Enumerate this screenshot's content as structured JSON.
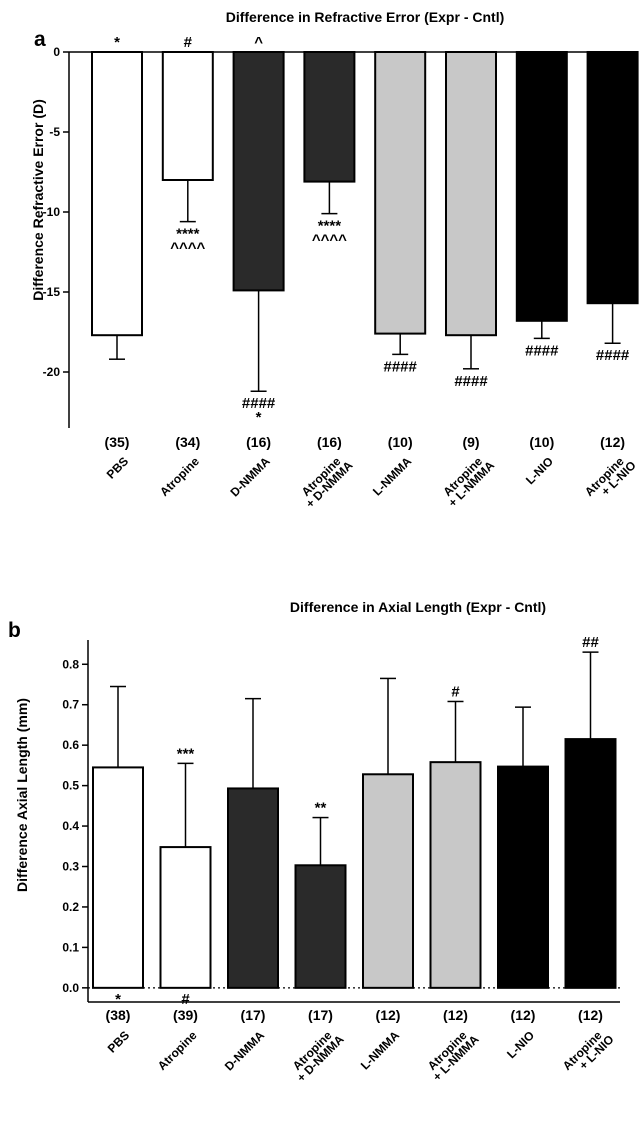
{
  "chart_data": [
    {
      "type": "bar",
      "panel_label": "a",
      "title": "Difference in Refractive Error (Expr -  Cntl)",
      "ylabel": "Difference Refractive  Error  (D)",
      "ylim": [
        -23.5,
        0
      ],
      "yticks": [
        "0",
        "-5",
        "-10",
        "-15",
        "-20"
      ],
      "ytick_values": [
        0,
        -5,
        -10,
        -15,
        -20
      ],
      "categories": [
        [
          "PBS"
        ],
        [
          "Atropine"
        ],
        [
          "D-NMMA"
        ],
        [
          "Atropine",
          "+ D-NMMA"
        ],
        [
          "L-NMMA"
        ],
        [
          "Atropine",
          "+ L-NMMA"
        ],
        [
          "L-NIO"
        ],
        [
          "Atropine",
          "+ L-NIO"
        ]
      ],
      "n_labels": [
        "(35)",
        "(34)",
        "(16)",
        "(16)",
        "(10)",
        "(9)",
        "(10)",
        "(12)"
      ],
      "values": [
        -17.7,
        -8.0,
        -14.9,
        -8.1,
        -17.6,
        -17.7,
        -16.8,
        -15.7
      ],
      "errors": [
        1.5,
        2.6,
        6.3,
        2.0,
        1.3,
        2.1,
        1.1,
        2.5
      ],
      "colors": [
        "#ffffff",
        "#ffffff",
        "#2a2a2a",
        "#2a2a2a",
        "#c8c8c8",
        "#c8c8c8",
        "#000000",
        "#000000"
      ],
      "top_annotations": [
        "*",
        "#",
        "^",
        "",
        "",
        "",
        "",
        ""
      ],
      "bottom_annotations": [
        [],
        [
          "****",
          "^^^^"
        ],
        [
          "####",
          "*"
        ],
        [
          "****",
          "^^^^"
        ],
        [
          "####"
        ],
        [
          "####"
        ],
        [
          "####"
        ],
        [
          "####"
        ]
      ]
    },
    {
      "type": "bar",
      "panel_label": "b",
      "title": "Difference in Axial Length (Expr -  Cntl)",
      "ylabel": "Difference Axial  Length (mm)",
      "ylim": [
        -0.035,
        0.86
      ],
      "yticks": [
        "0.0",
        "0.1",
        "0.2",
        "0.3",
        "0.4",
        "0.5",
        "0.6",
        "0.7",
        "0.8"
      ],
      "ytick_values": [
        0,
        0.1,
        0.2,
        0.3,
        0.4,
        0.5,
        0.6,
        0.7,
        0.8
      ],
      "categories": [
        [
          "PBS"
        ],
        [
          "Atropine"
        ],
        [
          "D-NMMA"
        ],
        [
          "Atropine",
          "+ D-NMMA"
        ],
        [
          "L-NMMA"
        ],
        [
          "Atropine",
          "+ L-NMMA"
        ],
        [
          "L-NIO"
        ],
        [
          "Atropine",
          "+ L-NIO"
        ]
      ],
      "n_labels": [
        "(38)",
        "(39)",
        "(17)",
        "(17)",
        "(12)",
        "(12)",
        "(12)",
        "(12)"
      ],
      "values": [
        0.545,
        0.348,
        0.493,
        0.303,
        0.528,
        0.558,
        0.547,
        0.615
      ],
      "errors": [
        0.2,
        0.207,
        0.222,
        0.118,
        0.237,
        0.15,
        0.147,
        0.215
      ],
      "colors": [
        "#ffffff",
        "#ffffff",
        "#2a2a2a",
        "#2a2a2a",
        "#c8c8c8",
        "#c8c8c8",
        "#000000",
        "#000000"
      ],
      "top_annotations": [
        "",
        "***",
        "",
        "**",
        "",
        "#",
        "",
        "##"
      ],
      "base_annotations": [
        "*",
        "#",
        "",
        "",
        "",
        "",
        "",
        ""
      ]
    }
  ]
}
